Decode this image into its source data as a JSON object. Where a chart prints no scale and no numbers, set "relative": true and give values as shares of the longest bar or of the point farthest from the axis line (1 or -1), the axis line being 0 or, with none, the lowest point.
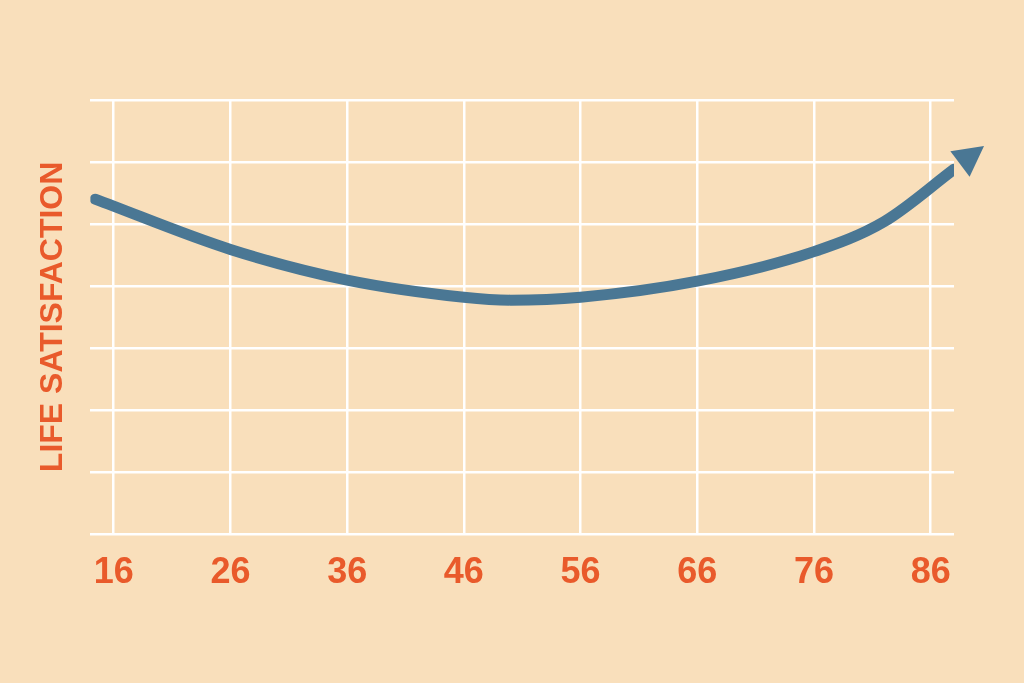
{
  "chart_data": {
    "type": "line",
    "ylabel": "LIFE SATISFACTION",
    "relative": true,
    "x": [
      14.4,
      26,
      36,
      46,
      50,
      56,
      66,
      76,
      82,
      88
    ],
    "series": [
      {
        "color": "#4a7794",
        "values": [
          0.918,
          0.78,
          0.696,
          0.649,
          0.641,
          0.649,
          0.693,
          0.774,
          0.856,
          1
        ]
      }
    ],
    "xlim": [
      14,
      88
    ],
    "xticks": [
      16,
      26,
      36,
      46,
      56,
      66,
      76,
      86
    ],
    "grid": true,
    "marker": "none",
    "line_style": "solid",
    "legend": false
  }
}
